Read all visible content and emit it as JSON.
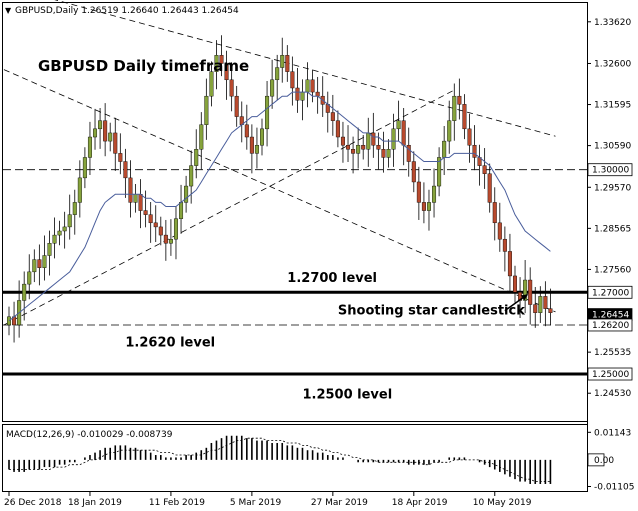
{
  "header": {
    "symbol_line": "GBPUSD,Daily  1.26519 1.26640 1.26443 1.26454"
  },
  "chart_data": {
    "type": "candlestick",
    "title": "GBPUSD Daily timeframe",
    "symbol": "GBPUSD",
    "timeframe": "Daily",
    "ohlc_current": {
      "open": 1.26519,
      "high": 1.2664,
      "low": 1.26443,
      "close": 1.26454
    },
    "y_ticks": [
      "1.33620",
      "1.32600",
      "1.31595",
      "1.30590",
      "1.29570",
      "1.28565",
      "1.27560",
      "1.25535",
      "1.24530"
    ],
    "ylim": [
      1.2385,
      1.3408
    ],
    "x_tick_labels": [
      "26 Dec 2018",
      "18 Jan 2019",
      "11 Feb 2019",
      "5 Mar 2019",
      "27 Mar 2019",
      "18 Apr 2019",
      "10 May 2019"
    ],
    "x_tick_bar_index": [
      0,
      16,
      32,
      48,
      64,
      80,
      96
    ],
    "n_bars": 108,
    "closes": [
      1.264,
      1.262,
      1.268,
      1.272,
      1.275,
      1.278,
      1.276,
      1.279,
      1.282,
      1.284,
      1.285,
      1.286,
      1.289,
      1.292,
      1.298,
      1.303,
      1.308,
      1.31,
      1.312,
      1.307,
      1.309,
      1.304,
      1.302,
      1.298,
      1.292,
      1.294,
      1.29,
      1.289,
      1.287,
      1.286,
      1.284,
      1.282,
      1.283,
      1.288,
      1.292,
      1.296,
      1.301,
      1.305,
      1.311,
      1.318,
      1.324,
      1.328,
      1.326,
      1.322,
      1.318,
      1.313,
      1.311,
      1.308,
      1.304,
      1.306,
      1.31,
      1.318,
      1.322,
      1.325,
      1.328,
      1.324,
      1.32,
      1.317,
      1.319,
      1.322,
      1.319,
      1.318,
      1.316,
      1.314,
      1.312,
      1.308,
      1.306,
      1.305,
      1.304,
      1.306,
      1.305,
      1.309,
      1.306,
      1.305,
      1.303,
      1.305,
      1.31,
      1.312,
      1.306,
      1.302,
      1.297,
      1.292,
      1.29,
      1.292,
      1.296,
      1.303,
      1.307,
      1.312,
      1.318,
      1.316,
      1.31,
      1.306,
      1.303,
      1.301,
      1.299,
      1.292,
      1.287,
      1.283,
      1.28,
      1.274,
      1.27,
      1.268,
      1.273,
      1.267,
      1.265,
      1.269,
      1.266,
      1.265
    ],
    "moving_average": [
      1.263,
      1.264,
      1.265,
      1.266,
      1.267,
      1.268,
      1.269,
      1.27,
      1.271,
      1.272,
      1.273,
      1.274,
      1.275,
      1.277,
      1.279,
      1.281,
      1.284,
      1.287,
      1.29,
      1.292,
      1.293,
      1.294,
      1.294,
      1.294,
      1.294,
      1.294,
      1.294,
      1.293,
      1.293,
      1.292,
      1.292,
      1.291,
      1.291,
      1.291,
      1.292,
      1.293,
      1.294,
      1.295,
      1.297,
      1.299,
      1.301,
      1.303,
      1.305,
      1.307,
      1.309,
      1.31,
      1.311,
      1.312,
      1.313,
      1.313,
      1.314,
      1.315,
      1.316,
      1.317,
      1.318,
      1.318,
      1.319,
      1.319,
      1.319,
      1.319,
      1.318,
      1.318,
      1.317,
      1.316,
      1.315,
      1.314,
      1.313,
      1.312,
      1.311,
      1.31,
      1.309,
      1.309,
      1.308,
      1.308,
      1.307,
      1.307,
      1.307,
      1.307,
      1.306,
      1.305,
      1.304,
      1.303,
      1.302,
      1.302,
      1.302,
      1.302,
      1.303,
      1.303,
      1.304,
      1.304,
      1.304,
      1.304,
      1.304,
      1.303,
      1.302,
      1.301,
      1.299,
      1.297,
      1.295,
      1.292,
      1.289,
      1.287,
      1.285,
      1.284,
      1.283,
      1.282,
      1.281,
      1.28
    ],
    "highlighted_levels": [
      {
        "value": 1.3,
        "label": "1.30000",
        "style": "dashed"
      },
      {
        "value": 1.27,
        "label": "1.27000",
        "style": "thick"
      },
      {
        "value": 1.26454,
        "label": "1.26454",
        "style": "current"
      },
      {
        "value": 1.262,
        "label": "1.26200",
        "style": "dashed"
      },
      {
        "value": 1.25,
        "label": "1.25000",
        "style": "thick"
      }
    ],
    "trendlines": [
      {
        "style": "dashed",
        "points": [
          [
            -1,
            1.345
          ],
          [
            108,
            1.3082
          ]
        ]
      },
      {
        "style": "dashed",
        "points": [
          [
            -1,
            1.3245
          ],
          [
            108,
            1.2652
          ]
        ]
      },
      {
        "style": "dashed",
        "points": [
          [
            -1,
            1.262
          ],
          [
            88,
            1.3195
          ]
        ]
      }
    ],
    "annotations": [
      {
        "text": "1.2700  level",
        "bar": 55,
        "value": 1.2738
      },
      {
        "text": "1.2620  level",
        "bar": 23,
        "value": 1.258
      },
      {
        "text": "1.2500  level",
        "bar": 58,
        "value": 1.2452
      },
      {
        "text": "Shooting star candlestick",
        "bar": 65,
        "value": 1.2658
      }
    ],
    "macd": {
      "label": "MACD(12,26,9) -0.010029 -0.008739",
      "y_ticks": [
        "0.01143",
        "0.00",
        "-0.01105"
      ],
      "histogram": [
        -0.004,
        -0.005,
        -0.005,
        -0.005,
        -0.004,
        -0.004,
        -0.004,
        -0.003,
        -0.003,
        -0.003,
        -0.002,
        -0.002,
        -0.001,
        -0.001,
        0.0,
        0.001,
        0.002,
        0.003,
        0.004,
        0.005,
        0.005,
        0.006,
        0.006,
        0.006,
        0.005,
        0.005,
        0.004,
        0.004,
        0.003,
        0.002,
        0.002,
        0.001,
        0.001,
        0.001,
        0.001,
        0.002,
        0.002,
        0.003,
        0.004,
        0.005,
        0.007,
        0.008,
        0.009,
        0.01,
        0.01,
        0.01,
        0.01,
        0.009,
        0.009,
        0.008,
        0.008,
        0.008,
        0.007,
        0.007,
        0.007,
        0.006,
        0.006,
        0.005,
        0.005,
        0.004,
        0.004,
        0.003,
        0.003,
        0.002,
        0.002,
        0.001,
        0.001,
        0.0,
        0.0,
        -0.001,
        -0.001,
        -0.001,
        -0.001,
        -0.001,
        -0.001,
        -0.001,
        -0.001,
        -0.001,
        -0.001,
        -0.002,
        -0.002,
        -0.002,
        -0.002,
        -0.002,
        -0.001,
        -0.001,
        0.0,
        0.001,
        0.001,
        0.001,
        0.001,
        0.0,
        0.0,
        -0.001,
        -0.002,
        -0.003,
        -0.004,
        -0.005,
        -0.006,
        -0.007,
        -0.008,
        -0.009,
        -0.009,
        -0.01,
        -0.01,
        -0.01,
        -0.01,
        -0.01
      ],
      "signal": [
        -0.004,
        -0.004,
        -0.004,
        -0.004,
        -0.004,
        -0.004,
        -0.004,
        -0.004,
        -0.004,
        -0.003,
        -0.003,
        -0.003,
        -0.002,
        -0.002,
        -0.002,
        -0.001,
        0.0,
        0.0,
        0.001,
        0.002,
        0.003,
        0.003,
        0.004,
        0.004,
        0.004,
        0.004,
        0.004,
        0.004,
        0.004,
        0.004,
        0.003,
        0.003,
        0.003,
        0.002,
        0.002,
        0.002,
        0.002,
        0.002,
        0.002,
        0.003,
        0.004,
        0.004,
        0.005,
        0.006,
        0.007,
        0.008,
        0.008,
        0.009,
        0.009,
        0.009,
        0.009,
        0.008,
        0.008,
        0.008,
        0.008,
        0.007,
        0.007,
        0.007,
        0.006,
        0.006,
        0.005,
        0.005,
        0.004,
        0.004,
        0.003,
        0.003,
        0.002,
        0.002,
        0.001,
        0.001,
        0.0,
        0.0,
        0.0,
        -0.001,
        -0.001,
        -0.001,
        -0.001,
        -0.001,
        -0.001,
        -0.001,
        -0.001,
        -0.001,
        -0.002,
        -0.002,
        -0.001,
        -0.001,
        -0.001,
        -0.001,
        0.0,
        0.0,
        0.0,
        0.0,
        0.0,
        0.0,
        -0.001,
        -0.001,
        -0.002,
        -0.003,
        -0.004,
        -0.005,
        -0.006,
        -0.007,
        -0.008,
        -0.008,
        -0.009,
        -0.009,
        -0.009,
        -0.009
      ]
    },
    "colors": {
      "bull_candle": "#86a33c",
      "bear_candle": "#b84a2e",
      "moving_average": "#4a5e9c",
      "grid_and_levels": "#000000",
      "background": "#ffffff"
    }
  }
}
